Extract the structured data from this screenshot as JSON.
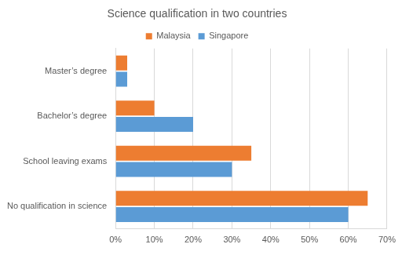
{
  "chart_data": {
    "type": "bar",
    "title": "Science qualification in two countries",
    "orientation": "horizontal",
    "categories": [
      "Master’s degree",
      "Bachelor’s degree",
      "School leaving exams",
      "No qualification in science"
    ],
    "series": [
      {
        "name": "Malaysia",
        "color": "#ed7d31",
        "values": [
          3,
          10,
          35,
          65
        ]
      },
      {
        "name": "Singapore",
        "color": "#5b9bd5",
        "values": [
          3,
          20,
          30,
          60
        ]
      }
    ],
    "xlim": [
      0,
      70
    ],
    "xticks": [
      {
        "value": 0,
        "label": "0%"
      },
      {
        "value": 10,
        "label": "10%"
      },
      {
        "value": 20,
        "label": "20%"
      },
      {
        "value": 30,
        "label": "30%"
      },
      {
        "value": 40,
        "label": "40%"
      },
      {
        "value": 50,
        "label": "50%"
      },
      {
        "value": 60,
        "label": "60%"
      },
      {
        "value": 70,
        "label": "70%"
      }
    ],
    "grid": true,
    "legend": "top"
  }
}
